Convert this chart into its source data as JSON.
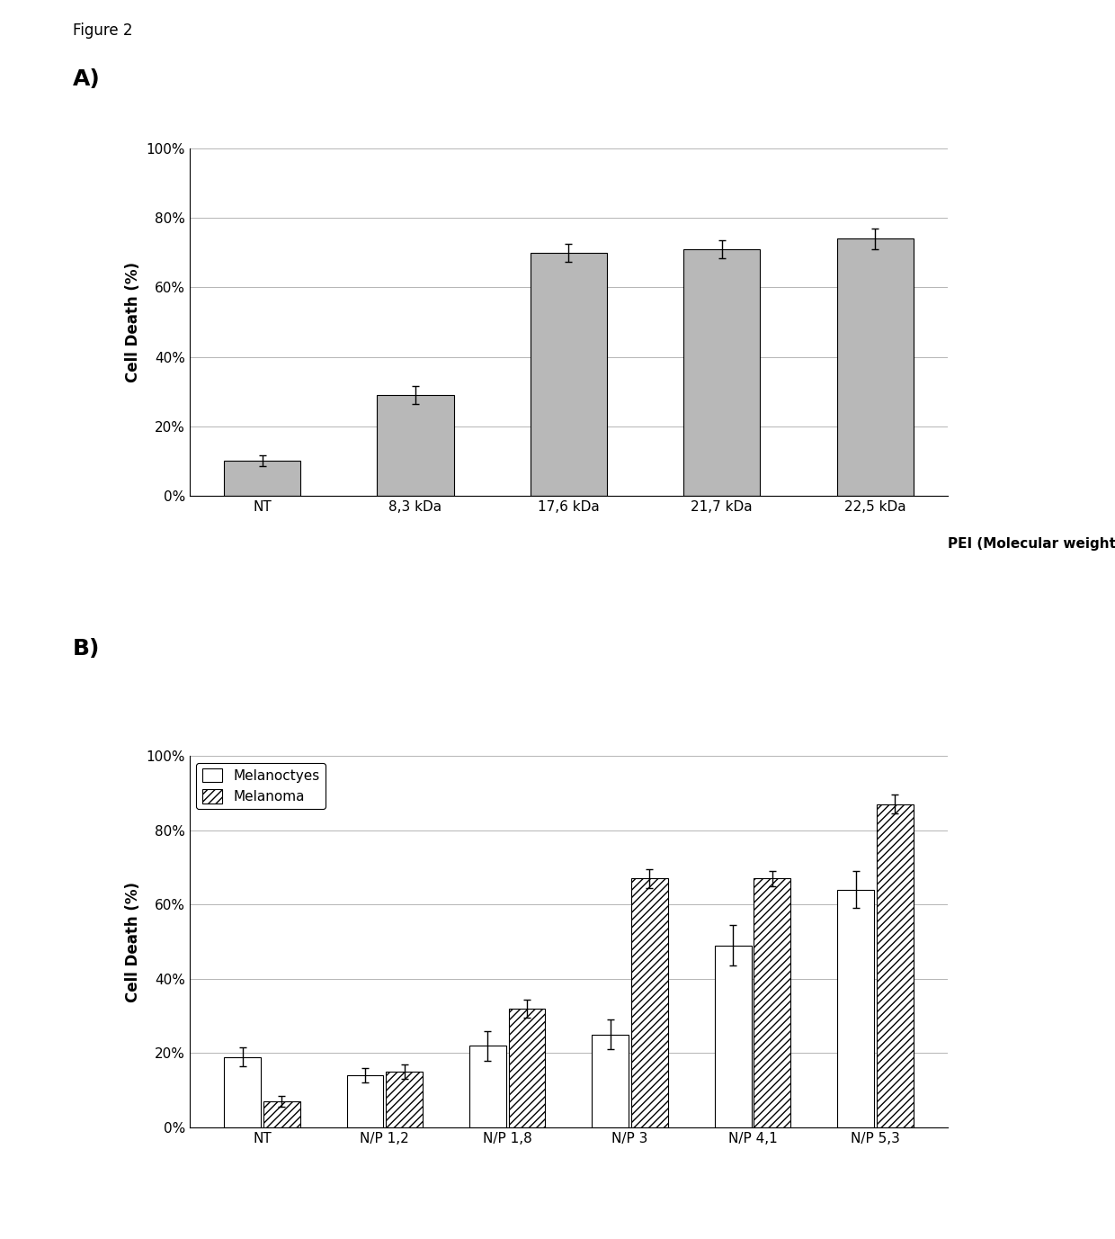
{
  "fig_label": "Figure 2",
  "panel_A": {
    "label": "A)",
    "categories": [
      "NT",
      "8,3 kDa",
      "17,6 kDa",
      "21,7 kDa",
      "22,5 kDa"
    ],
    "values": [
      0.1,
      0.29,
      0.7,
      0.71,
      0.74
    ],
    "errors": [
      0.015,
      0.025,
      0.025,
      0.025,
      0.03
    ],
    "ylabel": "Cell Death (%)",
    "xlabel": "PEI (Molecular weight)",
    "ylim": [
      0,
      1.0
    ],
    "yticks": [
      0,
      0.2,
      0.4,
      0.6,
      0.8,
      1.0
    ],
    "ytick_labels": [
      "0%",
      "20%",
      "40%",
      "60%",
      "80%",
      "100%"
    ],
    "bar_color": "#b8b8b8",
    "bar_edgecolor": "#000000"
  },
  "panel_B": {
    "label": "B)",
    "categories": [
      "NT",
      "N/P 1,2",
      "N/P 1,8",
      "N/P 3",
      "N/P 4,1",
      "N/P 5,3"
    ],
    "melanocytes_values": [
      0.19,
      0.14,
      0.22,
      0.25,
      0.49,
      0.64
    ],
    "melanocytes_errors": [
      0.025,
      0.02,
      0.04,
      0.04,
      0.055,
      0.05
    ],
    "melanoma_values": [
      0.07,
      0.15,
      0.32,
      0.67,
      0.67,
      0.87
    ],
    "melanoma_errors": [
      0.015,
      0.02,
      0.025,
      0.025,
      0.02,
      0.025
    ],
    "ylabel": "Cell Death (%)",
    "ylim": [
      0,
      1.0
    ],
    "yticks": [
      0,
      0.2,
      0.4,
      0.6,
      0.8,
      1.0
    ],
    "ytick_labels": [
      "0%",
      "20%",
      "40%",
      "60%",
      "80%",
      "100%"
    ],
    "melanocytes_color": "#ffffff",
    "melanocytes_edgecolor": "#000000",
    "melanoma_edgecolor": "#000000",
    "legend_labels": [
      "Melanoctyes",
      "Melanoma"
    ]
  },
  "background_color": "#ffffff",
  "font_family": "Arial"
}
